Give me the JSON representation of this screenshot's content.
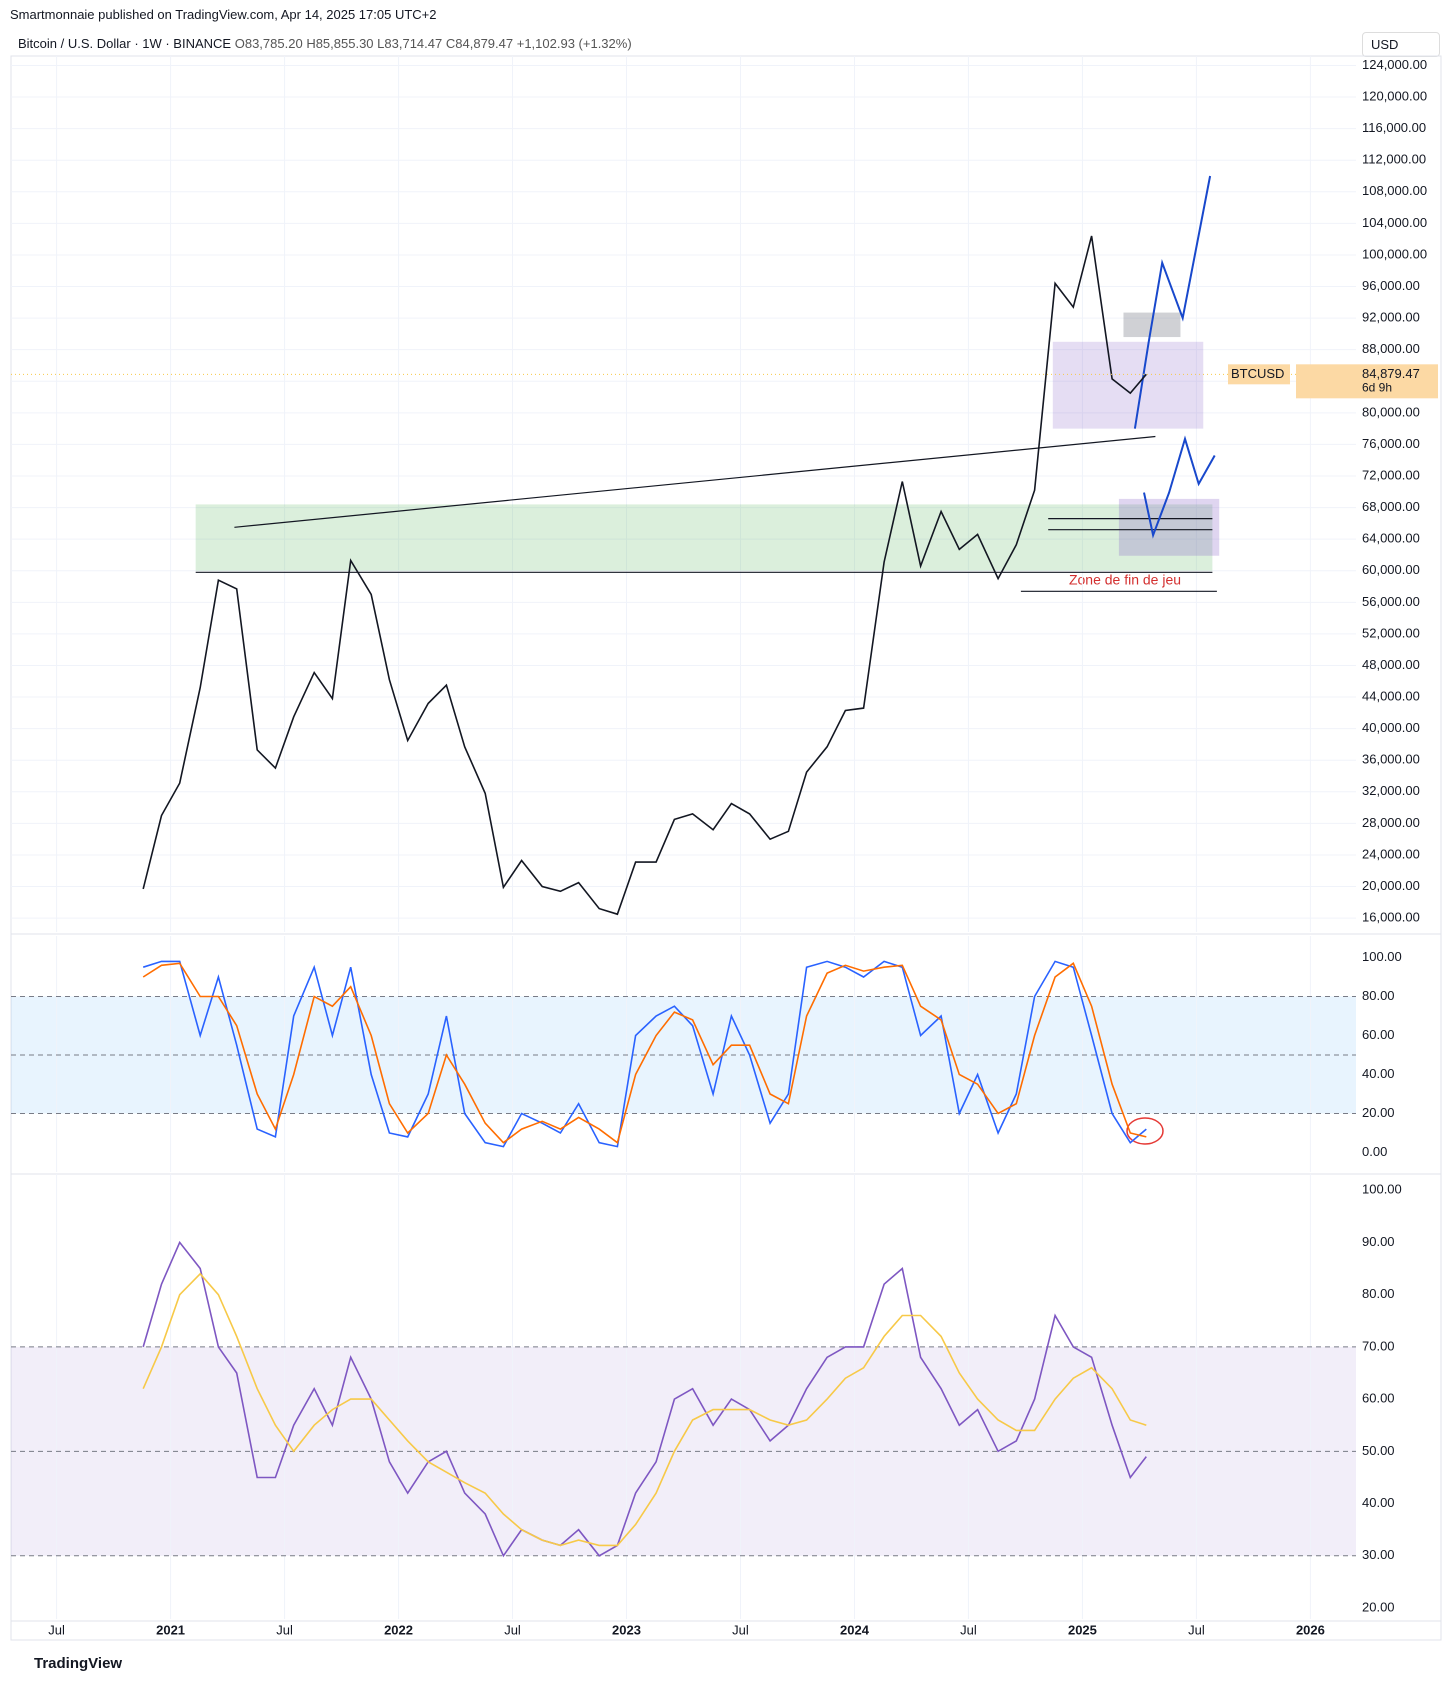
{
  "header": {
    "published": "Smartmonnaie published on TradingView.com, Apr 14, 2025 17:05 UTC+2",
    "symbol": "Bitcoin / U.S. Dollar · 1W · BINANCE",
    "open": "O83,785.20",
    "high": "H85,855.30",
    "low": "L83,714.47",
    "close": "C84,879.47",
    "change": "+1,102.93 (+1.32%)",
    "currency": "USD"
  },
  "footer": {
    "brand": "TradingView"
  },
  "price_tag": {
    "symbol": "BTCUSD",
    "value": 84879.47,
    "label": "84,879.47",
    "countdown": "6d 9h"
  },
  "annotation": "Zone de fin de jeu",
  "chart_data": [
    {
      "type": "line",
      "xlim": [
        2020.3,
        2026.2
      ],
      "ylim": [
        14240,
        125200
      ],
      "x": [
        2020.88,
        2020.96,
        2021.04,
        2021.13,
        2021.21,
        2021.29,
        2021.38,
        2021.46,
        2021.54,
        2021.63,
        2021.71,
        2021.79,
        2021.88,
        2021.96,
        2022.04,
        2022.13,
        2022.21,
        2022.29,
        2022.38,
        2022.46,
        2022.54,
        2022.63,
        2022.71,
        2022.79,
        2022.88,
        2022.96,
        2023.04,
        2023.13,
        2023.21,
        2023.29,
        2023.38,
        2023.46,
        2023.54,
        2023.63,
        2023.71,
        2023.79,
        2023.88,
        2023.96,
        2024.04,
        2024.13,
        2024.21,
        2024.29,
        2024.38,
        2024.46,
        2024.54,
        2024.63,
        2024.71,
        2024.79,
        2024.88,
        2024.96,
        2025.04,
        2025.13,
        2025.21,
        2025.28
      ],
      "series": [
        {
          "name": "BTCUSD",
          "color": "#131722",
          "values": [
            19700,
            29000,
            33100,
            45200,
            58800,
            57700,
            37300,
            35000,
            41500,
            47100,
            43800,
            61300,
            57000,
            46200,
            38500,
            43200,
            45500,
            37700,
            31800,
            19900,
            23300,
            20000,
            19400,
            20500,
            17200,
            16500,
            23100,
            23100,
            28500,
            29200,
            27200,
            30500,
            29200,
            26000,
            27000,
            34500,
            37700,
            42300,
            42600,
            61100,
            71300,
            60600,
            67500,
            62700,
            64600,
            59000,
            63300,
            70200,
            96400,
            93400,
            102400,
            84300,
            82500,
            84879.47
          ]
        }
      ],
      "yticks": [
        {
          "value": 16000,
          "label": "16,000.00"
        },
        {
          "value": 20000,
          "label": "20,000.00"
        },
        {
          "value": 24000,
          "label": "24,000.00"
        },
        {
          "value": 28000,
          "label": "28,000.00"
        },
        {
          "value": 32000,
          "label": "32,000.00"
        },
        {
          "value": 36000,
          "label": "36,000.00"
        },
        {
          "value": 40000,
          "label": "40,000.00"
        },
        {
          "value": 44000,
          "label": "44,000.00"
        },
        {
          "value": 48000,
          "label": "48,000.00"
        },
        {
          "value": 52000,
          "label": "52,000.00"
        },
        {
          "value": 56000,
          "label": "56,000.00"
        },
        {
          "value": 60000,
          "label": "60,000.00"
        },
        {
          "value": 64000,
          "label": "64,000.00"
        },
        {
          "value": 68000,
          "label": "68,000.00"
        },
        {
          "value": 72000,
          "label": "72,000.00"
        },
        {
          "value": 76000,
          "label": "76,000.00"
        },
        {
          "value": 80000,
          "label": "80,000.00"
        },
        {
          "value": 84000,
          "label": "84,000.00"
        },
        {
          "value": 88000,
          "label": "88,000.00"
        },
        {
          "value": 92000,
          "label": "92,000.00"
        },
        {
          "value": 96000,
          "label": "96,000.00"
        },
        {
          "value": 100000,
          "label": "100,000.00"
        },
        {
          "value": 104000,
          "label": "104,000.00"
        },
        {
          "value": 108000,
          "label": "108,000.00"
        },
        {
          "value": 112000,
          "label": "112,000.00"
        },
        {
          "value": 116000,
          "label": "116,000.00"
        },
        {
          "value": 120000,
          "label": "120,000.00"
        },
        {
          "value": 124000,
          "label": "124,000.00"
        }
      ],
      "grid": true,
      "zones": [
        {
          "x": [
            2021.11,
            2025.57
          ],
          "y": [
            60000,
            68400
          ],
          "color": "rgba(76,175,80,0.2)"
        },
        {
          "x": [
            2024.87,
            2025.53
          ],
          "y": [
            78000,
            89000
          ],
          "color": "rgba(126,87,194,0.2)"
        },
        {
          "x": [
            2025.18,
            2025.43
          ],
          "y": [
            89600,
            92700
          ],
          "color": "rgba(120,123,134,0.35)"
        },
        {
          "x": [
            2025.16,
            2025.6
          ],
          "y": [
            61900,
            69100
          ],
          "color": "rgba(126,87,194,0.25)"
        }
      ],
      "lines": [
        {
          "x": [
            2021.28,
            2025.32
          ],
          "y": [
            65500,
            77000
          ],
          "color": "#131722"
        },
        {
          "x": [
            2021.11,
            2025.57
          ],
          "y": [
            59800,
            59800
          ],
          "color": "#131722"
        },
        {
          "x": [
            2024.73,
            2025.59
          ],
          "y": [
            57400,
            57400
          ],
          "color": "#131722"
        },
        {
          "x": [
            2024.85,
            2025.57
          ],
          "y": [
            66600,
            66600
          ],
          "color": "#131722"
        },
        {
          "x": [
            2024.85,
            2025.57
          ],
          "y": [
            65200,
            65200
          ],
          "color": "#131722"
        },
        {
          "x": [
            2025.23,
            2025.29,
            2025.35,
            2025.44,
            2025.56
          ],
          "y": [
            78000,
            88900,
            99000,
            92000,
            110000
          ],
          "color": "#1848cc"
        },
        {
          "x": [
            2025.27,
            2025.31,
            2025.38,
            2025.45,
            2025.51,
            2025.58
          ],
          "y": [
            69900,
            64500,
            69900,
            76700,
            71000,
            74600
          ],
          "color": "#1848cc"
        }
      ]
    },
    {
      "type": "line",
      "xlim": [
        2020.3,
        2026.2
      ],
      "ylim": [
        -10,
        111
      ],
      "x": [
        2020.88,
        2020.96,
        2021.04,
        2021.13,
        2021.21,
        2021.29,
        2021.38,
        2021.46,
        2021.54,
        2021.63,
        2021.71,
        2021.79,
        2021.88,
        2021.96,
        2022.04,
        2022.13,
        2022.21,
        2022.29,
        2022.38,
        2022.46,
        2022.54,
        2022.63,
        2022.71,
        2022.79,
        2022.88,
        2022.96,
        2023.04,
        2023.13,
        2023.21,
        2023.29,
        2023.38,
        2023.46,
        2023.54,
        2023.63,
        2023.71,
        2023.79,
        2023.88,
        2023.96,
        2024.04,
        2024.13,
        2024.21,
        2024.29,
        2024.38,
        2024.46,
        2024.54,
        2024.63,
        2024.71,
        2024.79,
        2024.88,
        2024.96,
        2025.04,
        2025.13,
        2025.21,
        2025.28
      ],
      "series": [
        {
          "name": "K",
          "color": "#2962ff",
          "values": [
            95,
            98,
            98,
            60,
            90,
            55,
            12,
            8,
            70,
            95,
            60,
            95,
            40,
            10,
            8,
            30,
            70,
            20,
            5,
            3,
            20,
            15,
            10,
            25,
            5,
            3,
            60,
            70,
            75,
            65,
            30,
            70,
            50,
            15,
            30,
            95,
            98,
            95,
            90,
            98,
            95,
            60,
            70,
            20,
            40,
            10,
            30,
            80,
            98,
            95,
            60,
            20,
            5,
            12
          ]
        },
        {
          "name": "D",
          "color": "#ff6d00",
          "values": [
            90,
            96,
            97,
            80,
            80,
            65,
            30,
            12,
            40,
            80,
            75,
            85,
            60,
            25,
            10,
            20,
            50,
            35,
            15,
            5,
            12,
            16,
            12,
            18,
            12,
            5,
            40,
            60,
            72,
            68,
            45,
            55,
            55,
            30,
            25,
            70,
            92,
            96,
            93,
            95,
            96,
            75,
            68,
            40,
            35,
            20,
            25,
            60,
            90,
            97,
            75,
            35,
            10,
            8
          ]
        }
      ],
      "yticks": [
        {
          "value": 0,
          "label": "0.00"
        },
        {
          "value": 20,
          "label": "20.00"
        },
        {
          "value": 40,
          "label": "40.00"
        },
        {
          "value": 60,
          "label": "60.00"
        },
        {
          "value": 80,
          "label": "80.00"
        },
        {
          "value": 100,
          "label": "100.00"
        }
      ],
      "band": [
        20,
        80
      ],
      "band_color": "rgba(33,150,243,0.1)",
      "levels": [
        20,
        50,
        80
      ]
    },
    {
      "type": "line",
      "xlim": [
        2020.3,
        2026.2
      ],
      "ylim": [
        17.9,
        103.1
      ],
      "x": [
        2020.88,
        2020.96,
        2021.04,
        2021.13,
        2021.21,
        2021.29,
        2021.38,
        2021.46,
        2021.54,
        2021.63,
        2021.71,
        2021.79,
        2021.88,
        2021.96,
        2022.04,
        2022.13,
        2022.21,
        2022.29,
        2022.38,
        2022.46,
        2022.54,
        2022.63,
        2022.71,
        2022.79,
        2022.88,
        2022.96,
        2023.04,
        2023.13,
        2023.21,
        2023.29,
        2023.38,
        2023.46,
        2023.54,
        2023.63,
        2023.71,
        2023.79,
        2023.88,
        2023.96,
        2024.04,
        2024.13,
        2024.21,
        2024.29,
        2024.38,
        2024.46,
        2024.54,
        2024.63,
        2024.71,
        2024.79,
        2024.88,
        2024.96,
        2025.04,
        2025.13,
        2025.21,
        2025.28
      ],
      "series": [
        {
          "name": "RSI",
          "color": "#7e57c2",
          "values": [
            70,
            82,
            90,
            85,
            70,
            65,
            45,
            45,
            55,
            62,
            55,
            68,
            60,
            48,
            42,
            48,
            50,
            42,
            38,
            30,
            35,
            33,
            32,
            35,
            30,
            32,
            42,
            48,
            60,
            62,
            55,
            60,
            58,
            52,
            55,
            62,
            68,
            70,
            70,
            82,
            85,
            68,
            62,
            55,
            58,
            50,
            52,
            60,
            76,
            70,
            68,
            55,
            45,
            49
          ]
        },
        {
          "name": "RSI MA",
          "color": "#f7c948",
          "values": [
            62,
            70,
            80,
            84,
            80,
            72,
            62,
            55,
            50,
            55,
            58,
            60,
            60,
            56,
            52,
            48,
            46,
            44,
            42,
            38,
            35,
            33,
            32,
            33,
            32,
            32,
            36,
            42,
            50,
            56,
            58,
            58,
            58,
            56,
            55,
            56,
            60,
            64,
            66,
            72,
            76,
            76,
            72,
            65,
            60,
            56,
            54,
            54,
            60,
            64,
            66,
            62,
            56,
            55
          ]
        }
      ],
      "yticks": [
        {
          "value": 20,
          "label": "20.00"
        },
        {
          "value": 30,
          "label": "30.00"
        },
        {
          "value": 40,
          "label": "40.00"
        },
        {
          "value": 50,
          "label": "50.00"
        },
        {
          "value": 60,
          "label": "60.00"
        },
        {
          "value": 70,
          "label": "70.00"
        },
        {
          "value": 80,
          "label": "80.00"
        },
        {
          "value": 90,
          "label": "90.00"
        },
        {
          "value": 100,
          "label": "100.00"
        }
      ],
      "band": [
        30,
        70
      ],
      "band_color": "rgba(126,87,194,0.1)",
      "levels": [
        30,
        50,
        70
      ],
      "xticks": [
        {
          "value": 2020.5,
          "label": "Jul"
        },
        2021,
        {
          "value": 2021.5,
          "label": "Jul"
        },
        2022,
        {
          "value": 2022.5,
          "label": "Jul"
        },
        2023,
        {
          "value": 2023.5,
          "label": "Jul"
        },
        2024,
        {
          "value": 2024.5,
          "label": "Jul"
        },
        2025,
        {
          "value": 2025.5,
          "label": "Jul"
        },
        2026
      ]
    }
  ]
}
